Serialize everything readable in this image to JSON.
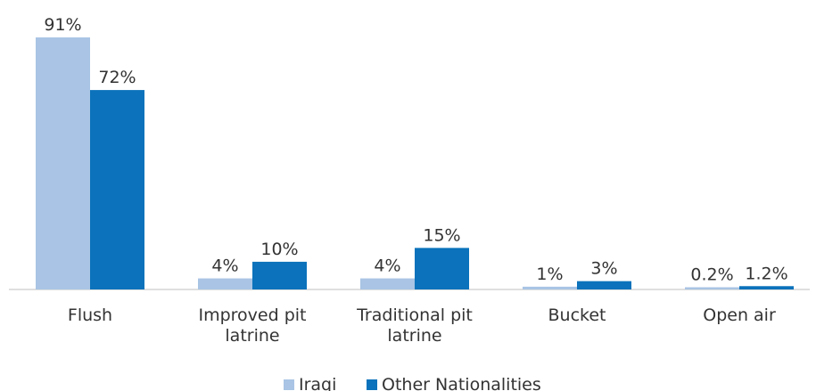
{
  "chart_data": {
    "type": "bar",
    "categories": [
      "Flush",
      "Improved pit latrine",
      "Traditional pit latrine",
      "Bucket",
      "Open air"
    ],
    "category_lines": [
      [
        "Flush"
      ],
      [
        "Improved pit",
        "latrine"
      ],
      [
        "Traditional pit",
        "latrine"
      ],
      [
        "Bucket"
      ],
      [
        "Open air"
      ]
    ],
    "series": [
      {
        "name": "Iraqi",
        "values": [
          91,
          4,
          4,
          1,
          0.2
        ],
        "labels": [
          "91%",
          "4%",
          "4%",
          "1%",
          "0.2%"
        ],
        "color": "#a9c4e4"
      },
      {
        "name": "Other Nationalities",
        "values": [
          72,
          10,
          15,
          3,
          1.2
        ],
        "labels": [
          "72%",
          "10%",
          "15%",
          "3%",
          "1.2%"
        ],
        "color": "#0b72bb"
      }
    ],
    "ylim": [
      0,
      100
    ],
    "grid": false,
    "legend_position": "bottom"
  }
}
